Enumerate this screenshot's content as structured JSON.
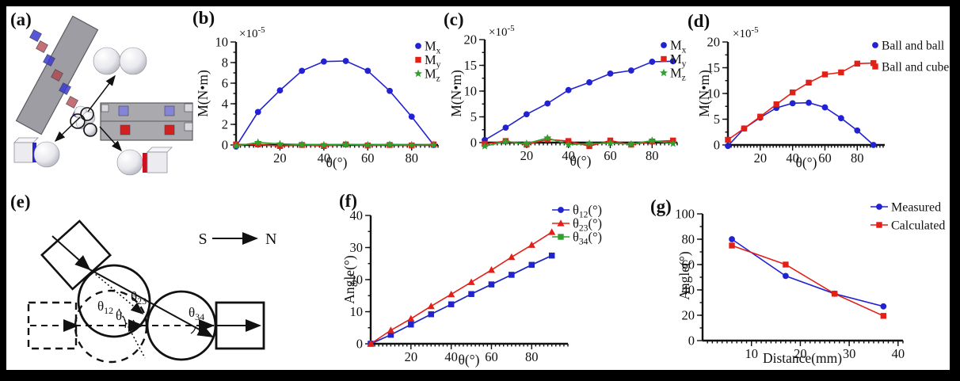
{
  "figure": {
    "panels": {
      "a": "(a)",
      "b": "(b)",
      "c": "(c)",
      "d": "(d)",
      "e": "(e)",
      "f": "(f)",
      "g": "(g)"
    },
    "compass": {
      "s": "S",
      "n": "N"
    },
    "angle_labels": {
      "t12": {
        "base": "θ",
        "sub": "12"
      },
      "t23": {
        "base": "θ",
        "sub": "23"
      },
      "t34": {
        "base": "θ",
        "sub": "34"
      },
      "t": {
        "base": "θ",
        "sub": ""
      }
    }
  },
  "colors": {
    "blue": "#2222D2",
    "red": "#E32017",
    "green": "#2FA12F",
    "axis": "#111111"
  },
  "chart_data": [
    {
      "id": "b",
      "type": "line",
      "ylabel": "M(N•m)",
      "xlabel": "θ(°)",
      "exponent": {
        "base": "×10",
        "sup": "-5"
      },
      "xlim": [
        0,
        92
      ],
      "ylim": [
        0,
        10
      ],
      "xticks": [
        20,
        40,
        60,
        80
      ],
      "yticks": [
        0,
        2,
        4,
        6,
        8,
        10
      ],
      "x": [
        0,
        10,
        20,
        30,
        40,
        50,
        60,
        70,
        80,
        90
      ],
      "series": [
        {
          "name": {
            "base": "M",
            "sub": "x"
          },
          "color": "#2222D2",
          "marker": "circle",
          "values": [
            -0.15,
            3.2,
            5.3,
            7.2,
            8.1,
            8.15,
            7.2,
            5.25,
            2.75,
            0
          ]
        },
        {
          "name": {
            "base": "M",
            "sub": "y"
          },
          "color": "#E32017",
          "marker": "square",
          "values": [
            0.05,
            0.05,
            -0.1,
            0,
            -0.1,
            0.05,
            -0.05,
            0,
            -0.05,
            0.05
          ]
        },
        {
          "name": {
            "base": "M",
            "sub": "z"
          },
          "color": "#2FA12F",
          "marker": "star",
          "values": [
            -0.1,
            0.25,
            0.1,
            0.05,
            0,
            0.05,
            0,
            0.05,
            0,
            0
          ]
        }
      ]
    },
    {
      "id": "c",
      "type": "line",
      "ylabel": "M(N•m)",
      "xlabel": "θ(°)",
      "exponent": {
        "base": "×10",
        "sup": "-5"
      },
      "xlim": [
        0,
        92
      ],
      "ylim": [
        0,
        20
      ],
      "xticks": [
        20,
        40,
        60,
        80
      ],
      "yticks": [
        0,
        5,
        10,
        15,
        20
      ],
      "x": [
        0,
        10,
        20,
        30,
        40,
        50,
        60,
        70,
        80,
        90
      ],
      "series": [
        {
          "name": {
            "base": "M",
            "sub": "x"
          },
          "color": "#2222D2",
          "marker": "circle",
          "values": [
            0.5,
            2.9,
            5.5,
            7.6,
            10.2,
            11.7,
            13.4,
            14.0,
            15.7,
            15.8
          ]
        },
        {
          "name": {
            "base": "M",
            "sub": "y"
          },
          "color": "#E32017",
          "marker": "square",
          "values": [
            -0.3,
            0.3,
            -0.4,
            0.6,
            0.3,
            -0.7,
            0.4,
            -0.4,
            0.2,
            0.4
          ]
        },
        {
          "name": {
            "base": "M",
            "sub": "z"
          },
          "color": "#2FA12F",
          "marker": "star",
          "values": [
            -0.7,
            0.2,
            -0.2,
            0.9,
            -0.4,
            -0.2,
            -0.1,
            -0.3,
            0.4,
            -0.2
          ]
        }
      ]
    },
    {
      "id": "d",
      "type": "line",
      "ylabel": "M(N•m)",
      "xlabel": "θ(°)",
      "exponent": {
        "base": "×10",
        "sup": "-5"
      },
      "xlim": [
        0,
        97
      ],
      "ylim": [
        0,
        20
      ],
      "xticks": [
        20,
        40,
        60,
        80
      ],
      "yticks": [
        0,
        5,
        10,
        15,
        20
      ],
      "x": [
        0,
        10,
        20,
        30,
        40,
        50,
        60,
        70,
        80,
        90
      ],
      "series": [
        {
          "name": {
            "base": "Ball and ball"
          },
          "color": "#2222D2",
          "marker": "circle",
          "values": [
            -0.2,
            3.2,
            5.3,
            7.2,
            8.1,
            8.2,
            7.3,
            5.2,
            2.8,
            0
          ]
        },
        {
          "name": {
            "base": "Ball and cube"
          },
          "color": "#E32017",
          "marker": "square",
          "values": [
            1.0,
            3.2,
            5.5,
            7.9,
            10.2,
            12.1,
            13.7,
            14.1,
            15.8,
            15.9
          ]
        }
      ]
    },
    {
      "id": "f",
      "type": "line",
      "ylabel": "Angle(°)",
      "xlabel": "θ(°)",
      "exponent": null,
      "xlim": [
        0,
        98
      ],
      "ylim": [
        0,
        40
      ],
      "xticks": [
        20,
        40,
        60,
        80
      ],
      "yticks": [
        0,
        10,
        20,
        30,
        40
      ],
      "x": [
        0,
        10,
        20,
        30,
        40,
        50,
        60,
        70,
        80,
        90
      ],
      "series": [
        {
          "name": {
            "base": "θ",
            "sub": "12",
            "suffix": "(°)"
          },
          "color": "#2222D2",
          "marker": "square",
          "values": [
            0,
            2.8,
            6.0,
            9.2,
            12.3,
            15.5,
            18.5,
            21.5,
            24.6,
            27.5
          ]
        },
        {
          "name": {
            "base": "θ",
            "sub": "23",
            "suffix": "(°)"
          },
          "color": "#E32017",
          "marker": "triangle",
          "values": [
            0,
            4.2,
            7.8,
            11.7,
            15.4,
            19.2,
            23.0,
            27.0,
            30.8,
            34.8
          ]
        },
        {
          "name": {
            "base": "θ",
            "sub": "34",
            "suffix": "(°)"
          },
          "color": "#2FA12F",
          "marker": "square",
          "values": [
            0,
            2.8,
            6.0,
            9.2,
            12.3,
            15.5,
            18.5,
            21.5,
            24.6,
            27.5
          ]
        }
      ]
    },
    {
      "id": "g",
      "type": "line",
      "ylabel": "Angle(°)",
      "xlabel": "Distance(mm)",
      "exponent": null,
      "xlim": [
        0,
        41
      ],
      "ylim": [
        0,
        100
      ],
      "xticks": [
        10,
        20,
        30,
        40
      ],
      "yticks": [
        0,
        20,
        40,
        60,
        80,
        100
      ],
      "x": [
        6,
        17,
        27,
        37
      ],
      "series": [
        {
          "name": {
            "base": "Measured"
          },
          "color": "#2222D2",
          "marker": "circle",
          "values": [
            80,
            51,
            37,
            27
          ]
        },
        {
          "name": {
            "base": "Calculated"
          },
          "color": "#E32017",
          "marker": "square",
          "values": [
            75,
            60,
            37,
            19.5
          ]
        }
      ]
    }
  ]
}
